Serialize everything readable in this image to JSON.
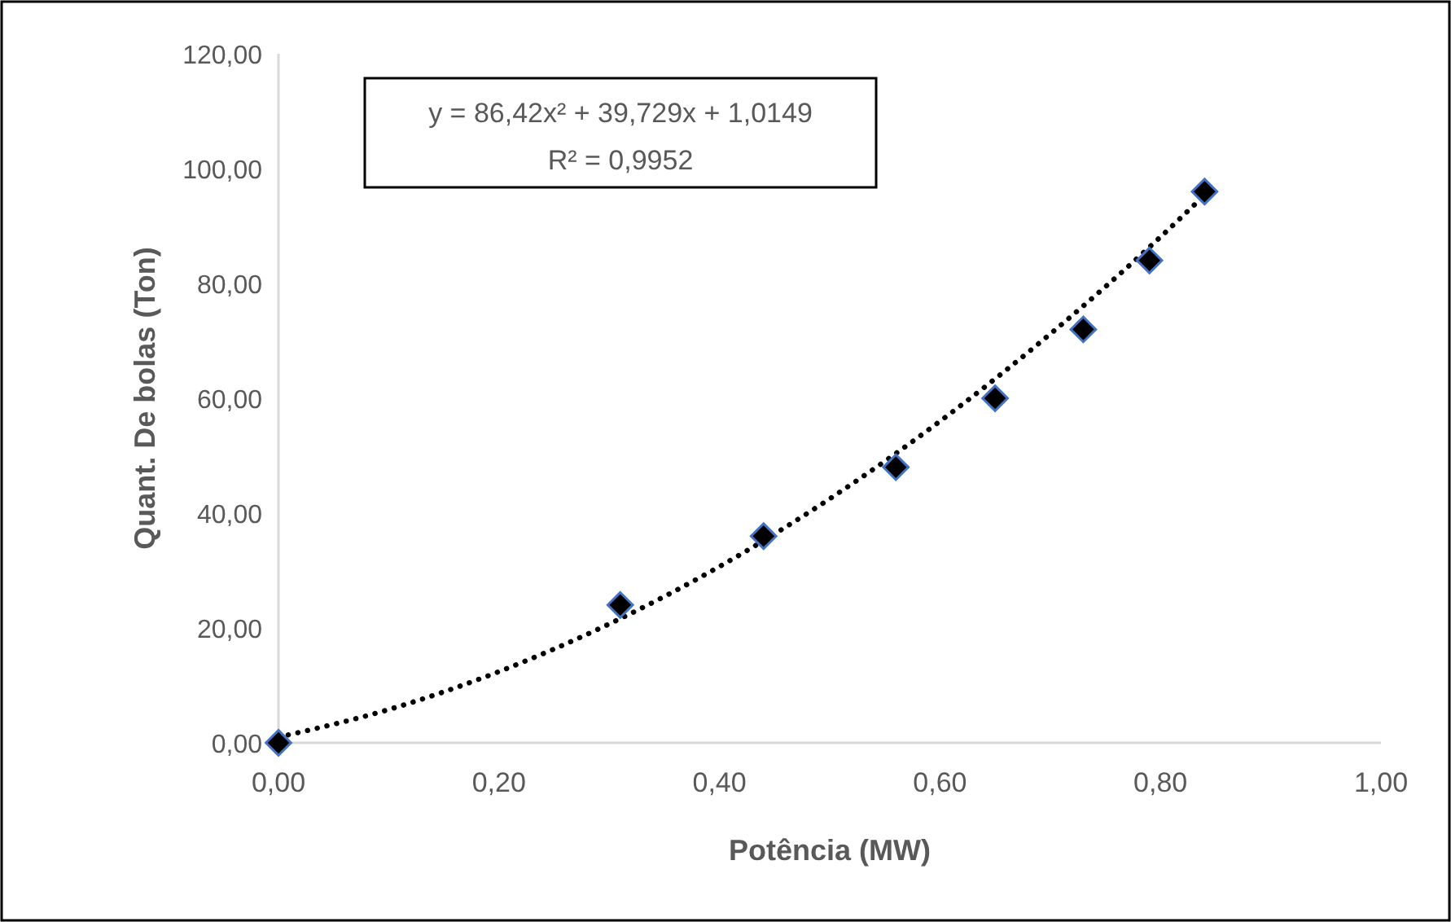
{
  "chart_data": {
    "type": "scatter",
    "xlabel": "Potência (MW)",
    "ylabel": "Quant. De bolas (Ton)",
    "annotations": [
      "y = 86,42x² + 39,729x + 1,0149",
      "R² = 0,9952"
    ],
    "xlim": [
      0,
      1
    ],
    "xticks": [
      {
        "value": 0,
        "label": "0,00"
      },
      {
        "value": 0.2,
        "label": "0,20"
      },
      {
        "value": 0.4,
        "label": "0,40"
      },
      {
        "value": 0.6,
        "label": "0,60"
      },
      {
        "value": 0.8,
        "label": "0,80"
      },
      {
        "value": 1,
        "label": "1,00"
      }
    ],
    "ylim": [
      0,
      120
    ],
    "yticks": [
      {
        "value": 0,
        "label": "0,00"
      },
      {
        "value": 20,
        "label": "20,00"
      },
      {
        "value": 40,
        "label": "40,00"
      },
      {
        "value": 60,
        "label": "60,00"
      },
      {
        "value": 80,
        "label": "80,00"
      },
      {
        "value": 100,
        "label": "100,00"
      },
      {
        "value": 120,
        "label": "120,00"
      }
    ],
    "grid": false,
    "series": [
      {
        "type": "line",
        "color": "#000000",
        "line_style": "dotted",
        "marker": "none",
        "x": [
          0,
          0.1,
          0.2,
          0.3,
          0.4,
          0.5,
          0.6,
          0.7,
          0.8,
          0.84
        ],
        "values": [
          1,
          5.8,
          12.4,
          20.7,
          30.7,
          42.5,
          56,
          71.2,
          88.1,
          95.4
        ]
      },
      {
        "color": "#000000",
        "marker": "diamond",
        "x": [
          0,
          0.31,
          0.44,
          0.56,
          0.65,
          0.73,
          0.79,
          0.84
        ],
        "values": [
          0,
          24,
          36,
          48,
          60,
          72,
          84,
          96
        ]
      }
    ]
  }
}
